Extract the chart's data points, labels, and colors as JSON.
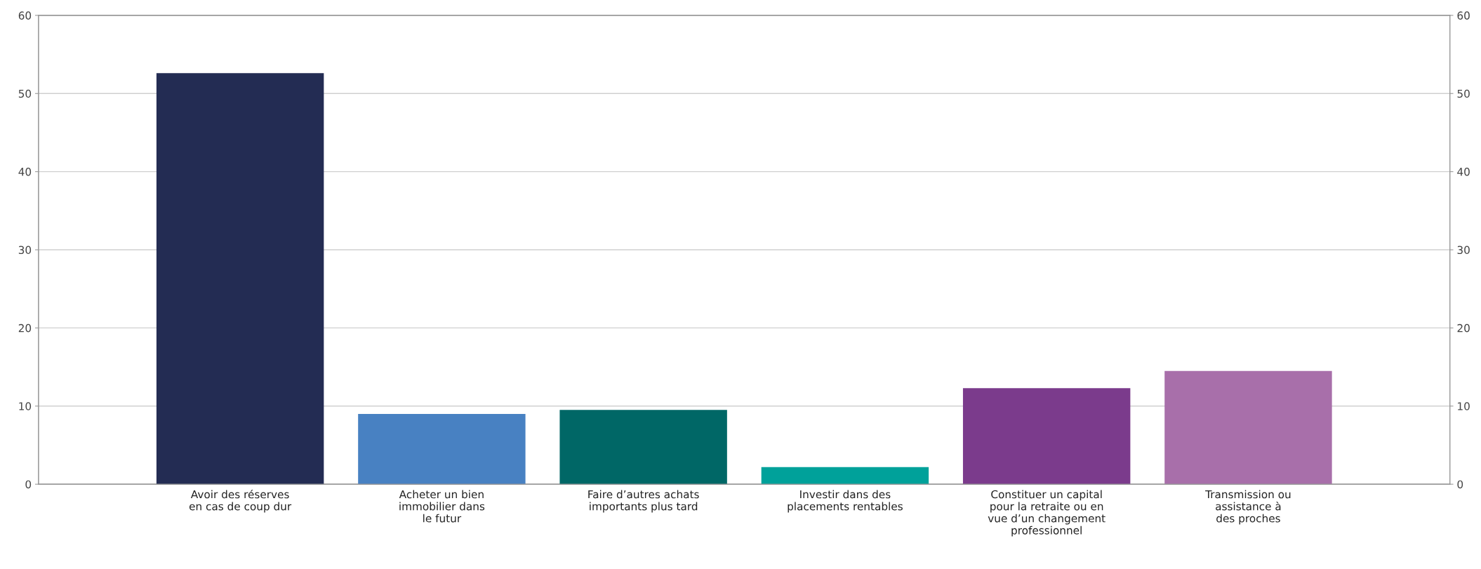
{
  "chart_data": {
    "type": "bar",
    "categories": [
      "Avoir des réserves\nen cas de coup dur",
      "Acheter un bien\nimmobilier dans\nle futur",
      "Faire d’autres achats\nimportants plus tard",
      "Investir dans des\nplacements rentables",
      "Constituer un capital\npour la retraite ou en\nvue d’un changement\nprofessionnel",
      "Transmission ou\nassistance à\ndes proches"
    ],
    "values": [
      52.6,
      9.0,
      9.5,
      2.2,
      12.3,
      14.5
    ],
    "colors": [
      "#232c53",
      "#4881c2",
      "#006766",
      "#00a19a",
      "#7b3b8c",
      "#a86faa"
    ],
    "ylim": [
      0,
      60
    ],
    "yticks": [
      0,
      10,
      20,
      30,
      40,
      50,
      60
    ],
    "y2lim": [
      0,
      60
    ],
    "y2ticks": [
      0,
      10,
      20,
      30,
      40,
      50,
      60
    ],
    "grid": "y"
  }
}
